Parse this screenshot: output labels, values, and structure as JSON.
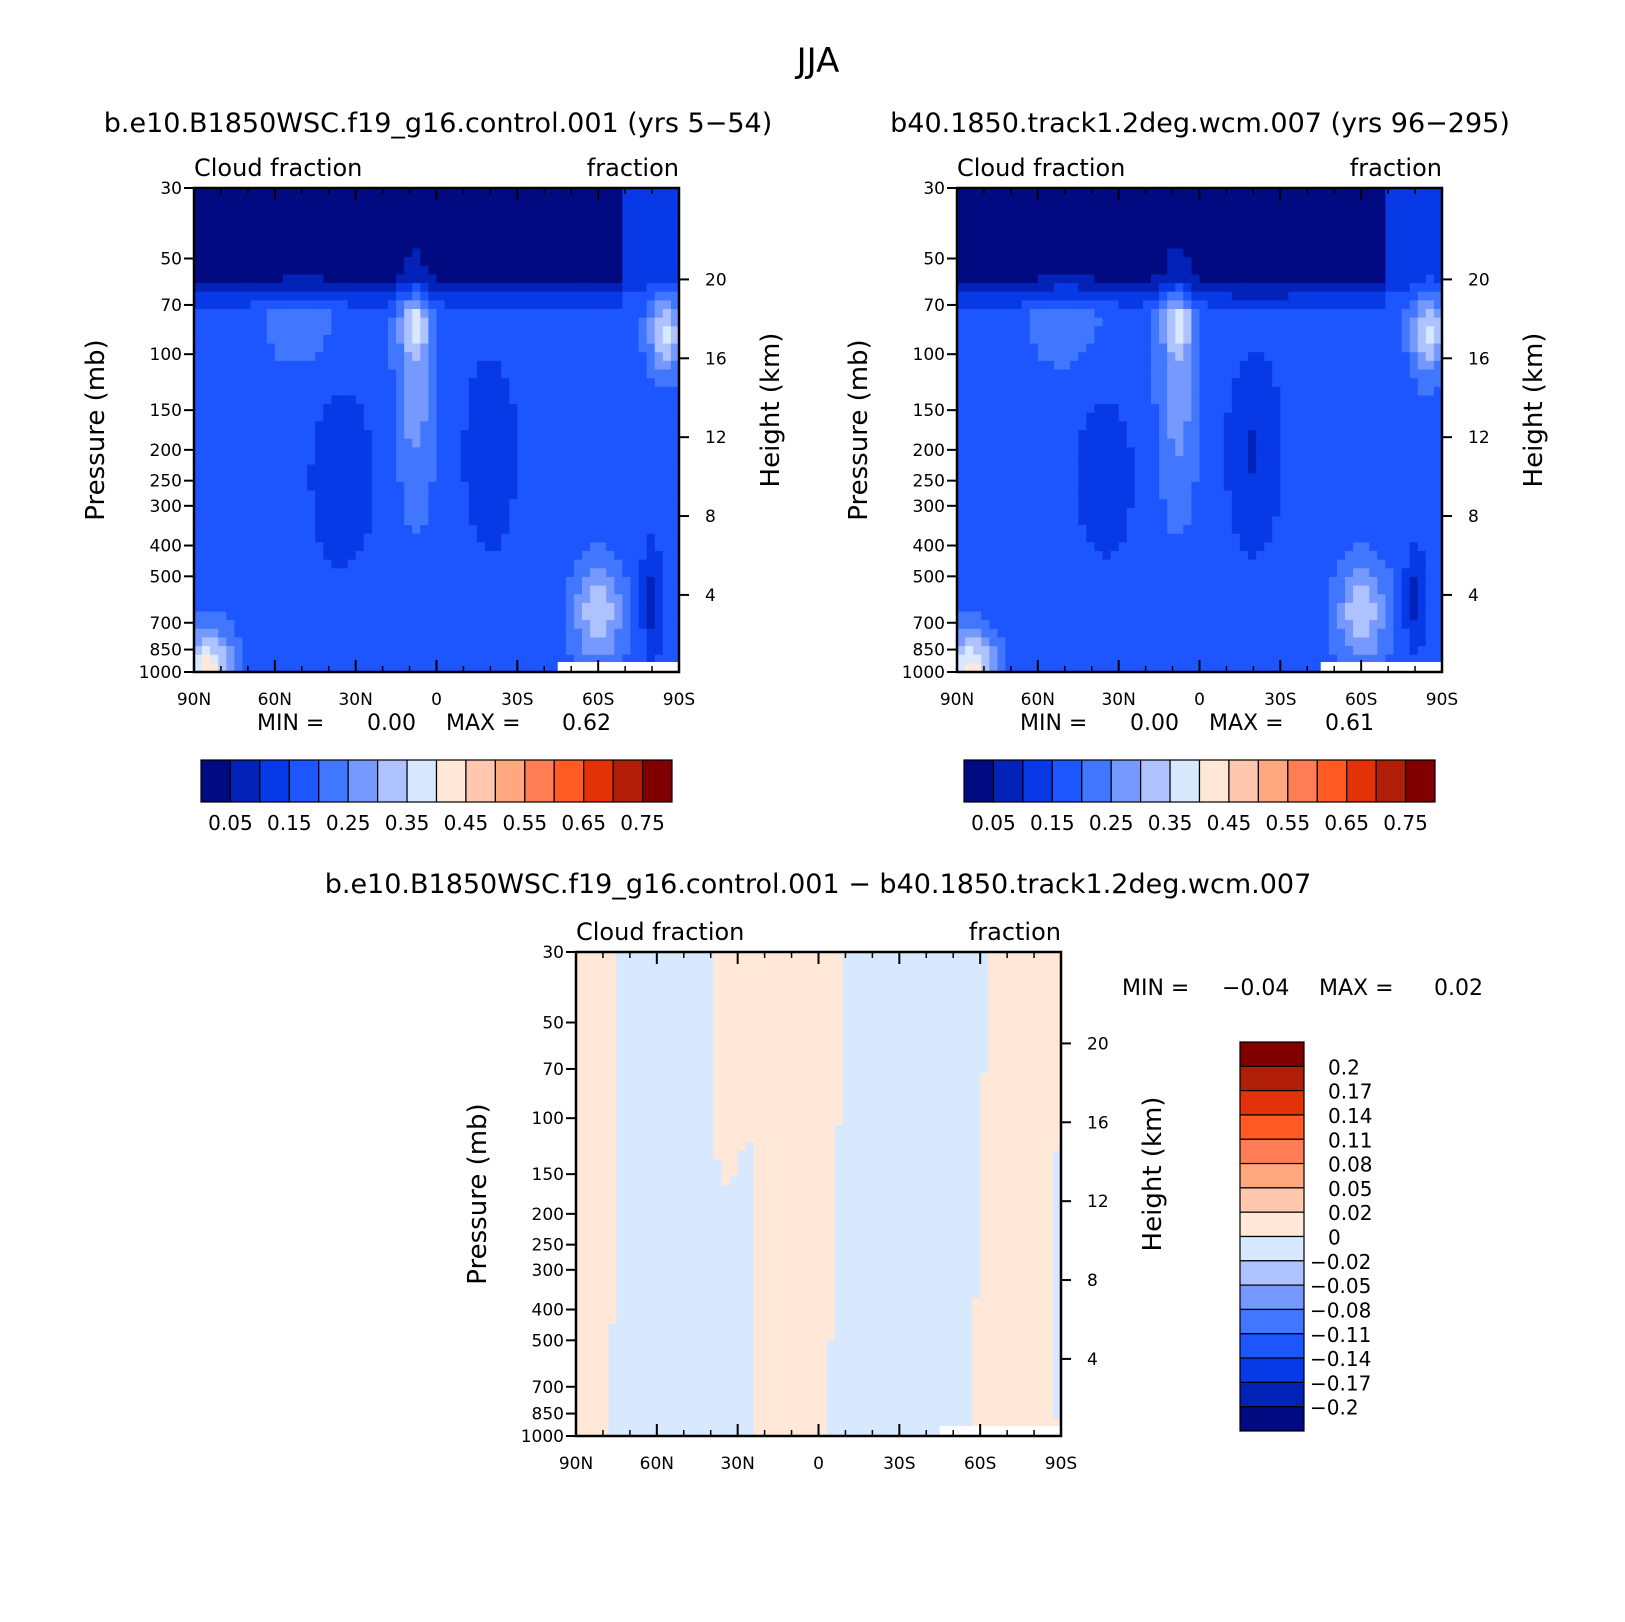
{
  "figure_title": "JJA",
  "chart_data": [
    {
      "type": "heatmap",
      "title": "b.e10.B1850WSC.f19_g16.control.001 (yrs 5-54)",
      "variable": "Cloud fraction",
      "units": "fraction",
      "xlabel": "",
      "ylabel": "Pressure (mb)",
      "y2label": "Height (km)",
      "x_ticks": [
        "90N",
        "60N",
        "30N",
        "0",
        "30S",
        "60S",
        "90S"
      ],
      "y_ticks": [
        "30",
        "50",
        "70",
        "100",
        "150",
        "200",
        "250",
        "300",
        "400",
        "500",
        "700",
        "850",
        "1000"
      ],
      "y2_ticks": [
        "20",
        "16",
        "12",
        "8",
        "4"
      ],
      "ylim": [
        1000,
        30
      ],
      "y_scale": "log",
      "min_label": "MIN =",
      "min_value": "0.00",
      "max_label": "MAX =",
      "max_value": "0.62",
      "colorbar_labels": [
        "0.05",
        "0.15",
        "0.25",
        "0.35",
        "0.45",
        "0.55",
        "0.65",
        "0.75"
      ],
      "colorbar_colors": [
        "#020a82",
        "#0323b8",
        "#0839e6",
        "#1d55ff",
        "#4177ff",
        "#7599ff",
        "#adc2ff",
        "#d8e8ff",
        "#ffe8d8",
        "#ffc8ae",
        "#ffa880",
        "#ff7d55",
        "#ff5b22",
        "#e43208",
        "#b01e08",
        "#800000"
      ]
    },
    {
      "type": "heatmap",
      "title": "b40.1850.track1.2deg.wcm.007 (yrs 96-295)",
      "variable": "Cloud fraction",
      "units": "fraction",
      "xlabel": "",
      "ylabel": "Pressure (mb)",
      "y2label": "Height (km)",
      "x_ticks": [
        "90N",
        "60N",
        "30N",
        "0",
        "30S",
        "60S",
        "90S"
      ],
      "y_ticks": [
        "30",
        "50",
        "70",
        "100",
        "150",
        "200",
        "250",
        "300",
        "400",
        "500",
        "700",
        "850",
        "1000"
      ],
      "y2_ticks": [
        "20",
        "16",
        "12",
        "8",
        "4"
      ],
      "ylim": [
        1000,
        30
      ],
      "y_scale": "log",
      "min_label": "MIN =",
      "min_value": "0.00",
      "max_label": "MAX =",
      "max_value": "0.61",
      "colorbar_labels": [
        "0.05",
        "0.15",
        "0.25",
        "0.35",
        "0.45",
        "0.55",
        "0.65",
        "0.75"
      ],
      "colorbar_colors": [
        "#020a82",
        "#0323b8",
        "#0839e6",
        "#1d55ff",
        "#4177ff",
        "#7599ff",
        "#adc2ff",
        "#d8e8ff",
        "#ffe8d8",
        "#ffc8ae",
        "#ffa880",
        "#ff7d55",
        "#ff5b22",
        "#e43208",
        "#b01e08",
        "#800000"
      ]
    },
    {
      "type": "heatmap",
      "title": "b.e10.B1850WSC.f19_g16.control.001 - b40.1850.track1.2deg.wcm.007",
      "variable": "Cloud fraction",
      "units": "fraction",
      "xlabel": "",
      "ylabel": "Pressure (mb)",
      "y2label": "Height (km)",
      "x_ticks": [
        "90N",
        "60N",
        "30N",
        "0",
        "30S",
        "60S",
        "90S"
      ],
      "y_ticks": [
        "30",
        "50",
        "70",
        "100",
        "150",
        "200",
        "250",
        "300",
        "400",
        "500",
        "700",
        "850",
        "1000"
      ],
      "y2_ticks": [
        "20",
        "16",
        "12",
        "8",
        "4"
      ],
      "ylim": [
        1000,
        30
      ],
      "y_scale": "log",
      "min_label": "MIN =",
      "min_value": "-0.04",
      "max_label": "MAX =",
      "max_value": "0.02",
      "colorbar_labels": [
        "0.2",
        "0.17",
        "0.14",
        "0.11",
        "0.08",
        "0.05",
        "0.02",
        "0",
        "-0.02",
        "-0.05",
        "-0.08",
        "-0.11",
        "-0.14",
        "-0.17",
        "-0.2"
      ],
      "colorbar_colors": [
        "#800000",
        "#b01e08",
        "#e43208",
        "#ff5b22",
        "#ff7d55",
        "#ffa880",
        "#ffc8ae",
        "#ffe8d8",
        "#d8e8ff",
        "#adc2ff",
        "#7599ff",
        "#4177ff",
        "#1d55ff",
        "#0839e6",
        "#0323b8",
        "#020a82"
      ]
    }
  ]
}
